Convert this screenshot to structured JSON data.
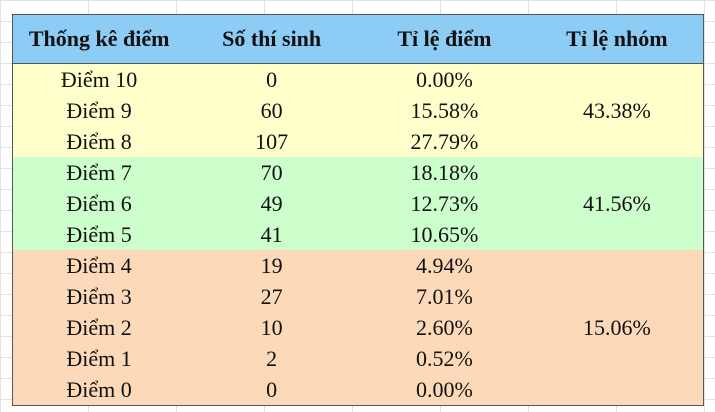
{
  "table": {
    "headers": [
      "Thống kê điểm",
      "Số thí sinh",
      "Tỉ lệ điểm",
      "Tỉ lệ nhóm"
    ],
    "groups": [
      {
        "rows": [
          [
            "Điểm 10",
            "0",
            "0.00%"
          ],
          [
            "Điểm 9",
            "60",
            "15.58%"
          ],
          [
            "Điểm 8",
            "107",
            "27.79%"
          ]
        ],
        "share": "43.38%"
      },
      {
        "rows": [
          [
            "Điểm 7",
            "70",
            "18.18%"
          ],
          [
            "Điểm 6",
            "49",
            "12.73%"
          ],
          [
            "Điểm 5",
            "41",
            "10.65%"
          ]
        ],
        "share": "41.56%"
      },
      {
        "rows": [
          [
            "Điểm 4",
            "19",
            "4.94%"
          ],
          [
            "Điểm 3",
            "27",
            "7.01%"
          ],
          [
            "Điểm 2",
            "10",
            "2.60%"
          ],
          [
            "Điểm 1",
            "2",
            "0.52%"
          ],
          [
            "Điểm 0",
            "0",
            "0.00%"
          ]
        ],
        "share": "15.06%"
      }
    ]
  }
}
